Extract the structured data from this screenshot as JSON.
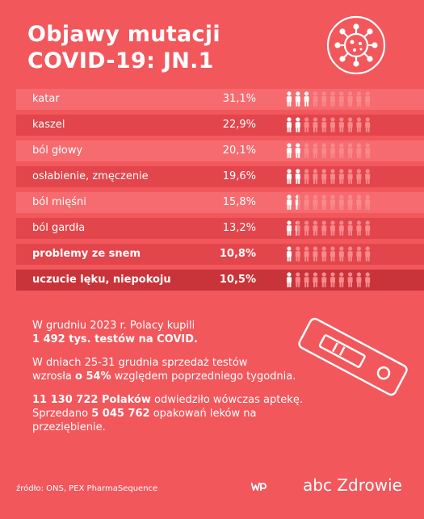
{
  "title": {
    "line1": "Objawy mutacji",
    "line2": "COVID-19: JN.1"
  },
  "chart_data": {
    "type": "bar",
    "categories": [
      "katar",
      "kaszel",
      "ból głowy",
      "osłabienie, zmęczenie",
      "ból mięśni",
      "ból gardła",
      "problemy ze snem",
      "uczucie lęku, niepokoju"
    ],
    "value_labels": [
      "31,1%",
      "22,9%",
      "20,1%",
      "19,6%",
      "15,8%",
      "13,2%",
      "10,8%",
      "10,5%"
    ],
    "values": [
      31.1,
      22.9,
      20.1,
      19.6,
      15.8,
      13.2,
      10.8,
      10.5
    ]
  },
  "rows": [
    {
      "label": "katar",
      "value": "31,1%"
    },
    {
      "label": "kaszel",
      "value": "22,9%"
    },
    {
      "label": "ból głowy",
      "value": "20,1%"
    },
    {
      "label": "osłabienie, zmęczenie",
      "value": "19,6%"
    },
    {
      "label": "ból mięśni",
      "value": "15,8%"
    },
    {
      "label": "ból gardła",
      "value": "13,2%"
    },
    {
      "label": "problemy ze snem",
      "value": "10,8%"
    },
    {
      "label": "uczucie lęku, niepokoju",
      "value": "10,5%"
    }
  ],
  "facts": {
    "p1_a": "W grudniu 2023 r. Polacy kupili",
    "p1_b": "1 492 tys. testów na COVID.",
    "p2_a": "W dniach 25-31 grudnia sprzedaż testów",
    "p2_b1": "wzrosła ",
    "p2_b2": "o 54%",
    "p2_b3": " względem poprzedniego tygodnia.",
    "p3_a1": "11 130 722 Polaków",
    "p3_a2": " odwiedziło wówczas aptekę.",
    "p3_b1": "Sprzedano ",
    "p3_b2": "5 045 762",
    "p3_b3": " opakowań leków na przeziębienie."
  },
  "source": "źródło: ONS, PEX PharmaSequence",
  "brand": "abc Zdrowie",
  "colors": {
    "background": "#f2575c",
    "row_bg": "#f66b6f",
    "row_bg_dark": "#e2454b",
    "row_bg_darker": "#c8343a",
    "icon_full": "#ffffff",
    "icon_faded": "#f8898c"
  }
}
